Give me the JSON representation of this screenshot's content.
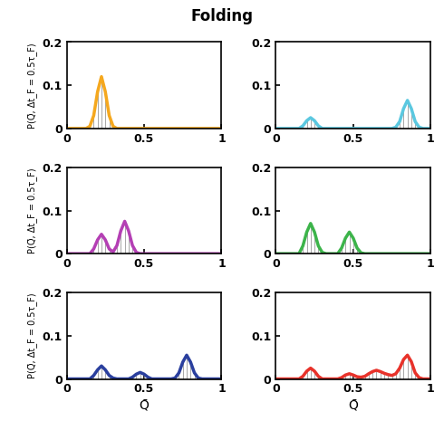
{
  "title": "Folding",
  "chart_data": [
    {
      "type": "line",
      "x": [
        0,
        0.025,
        0.05,
        0.075,
        0.1,
        0.125,
        0.15,
        0.175,
        0.2,
        0.225,
        0.25,
        0.275,
        0.3,
        0.325,
        0.35,
        0.375,
        0.4,
        0.425,
        0.45,
        0.475,
        0.5,
        0.525,
        0.55,
        0.575,
        0.6,
        0.625,
        0.65,
        0.675,
        0.7,
        0.725,
        0.75,
        0.775,
        0.8,
        0.825,
        0.85,
        0.875,
        0.9,
        0.925,
        0.95,
        0.975,
        1
      ],
      "series": [
        {
          "color": "#f5a81e",
          "values": [
            0,
            0,
            0,
            0,
            0,
            0,
            0.005,
            0.03,
            0.085,
            0.12,
            0.085,
            0.03,
            0.005,
            0,
            0,
            0,
            0,
            0,
            0,
            0,
            0,
            0,
            0,
            0,
            0,
            0,
            0,
            0,
            0,
            0,
            0,
            0,
            0,
            0,
            0,
            0,
            0,
            0,
            0,
            0,
            0
          ]
        }
      ],
      "xlim": [
        0,
        1
      ],
      "ylim": [
        0,
        0.2
      ],
      "xticks": [
        0,
        0.5,
        1
      ],
      "yticks": [
        0,
        0.1,
        0.2
      ],
      "ylabel": "P(Q̄, Δt_F = 0.5τ_F)"
    },
    {
      "type": "line",
      "x": [
        0,
        0.025,
        0.05,
        0.075,
        0.1,
        0.125,
        0.15,
        0.175,
        0.2,
        0.225,
        0.25,
        0.275,
        0.3,
        0.325,
        0.35,
        0.375,
        0.4,
        0.425,
        0.45,
        0.475,
        0.5,
        0.525,
        0.55,
        0.575,
        0.6,
        0.625,
        0.65,
        0.675,
        0.7,
        0.725,
        0.75,
        0.775,
        0.8,
        0.825,
        0.85,
        0.875,
        0.9,
        0.925,
        0.95,
        0.975,
        1
      ],
      "series": [
        {
          "color": "#5bc8e0",
          "values": [
            0,
            0,
            0,
            0,
            0,
            0,
            0,
            0.006,
            0.018,
            0.025,
            0.018,
            0.006,
            0,
            0,
            0,
            0,
            0,
            0,
            0,
            0,
            0,
            0,
            0,
            0,
            0,
            0,
            0,
            0,
            0,
            0,
            0,
            0.003,
            0.016,
            0.046,
            0.065,
            0.046,
            0.016,
            0.003,
            0,
            0,
            0
          ]
        }
      ],
      "xlim": [
        0,
        1
      ],
      "ylim": [
        0,
        0.2
      ],
      "xticks": [
        0,
        0.5,
        1
      ],
      "yticks": [
        0,
        0.1,
        0.2
      ]
    },
    {
      "type": "line",
      "x": [
        0,
        0.025,
        0.05,
        0.075,
        0.1,
        0.125,
        0.15,
        0.175,
        0.2,
        0.225,
        0.25,
        0.275,
        0.3,
        0.325,
        0.35,
        0.375,
        0.4,
        0.425,
        0.45,
        0.475,
        0.5,
        0.525,
        0.55,
        0.575,
        0.6,
        0.625,
        0.65,
        0.675,
        0.7,
        0.725,
        0.75,
        0.775,
        0.8,
        0.825,
        0.85,
        0.875,
        0.9,
        0.925,
        0.95,
        0.975,
        1
      ],
      "series": [
        {
          "color": "#b43fb4",
          "values": [
            0,
            0,
            0,
            0,
            0,
            0,
            0,
            0.011,
            0.032,
            0.045,
            0.032,
            0.011,
            0.004,
            0.019,
            0.053,
            0.075,
            0.053,
            0.019,
            0.003,
            0,
            0,
            0,
            0,
            0,
            0,
            0,
            0,
            0,
            0,
            0,
            0,
            0,
            0,
            0,
            0,
            0,
            0,
            0,
            0,
            0,
            0
          ]
        }
      ],
      "xlim": [
        0,
        1
      ],
      "ylim": [
        0,
        0.2
      ],
      "xticks": [
        0,
        0.5,
        1
      ],
      "yticks": [
        0,
        0.1,
        0.2
      ],
      "ylabel": "P(Q̄, Δt_F = 0.5τ_F)"
    },
    {
      "type": "line",
      "x": [
        0,
        0.025,
        0.05,
        0.075,
        0.1,
        0.125,
        0.15,
        0.175,
        0.2,
        0.225,
        0.25,
        0.275,
        0.3,
        0.325,
        0.35,
        0.375,
        0.4,
        0.425,
        0.45,
        0.475,
        0.5,
        0.525,
        0.55,
        0.575,
        0.6,
        0.625,
        0.65,
        0.675,
        0.7,
        0.725,
        0.75,
        0.775,
        0.8,
        0.825,
        0.85,
        0.875,
        0.9,
        0.925,
        0.95,
        0.975,
        1
      ],
      "series": [
        {
          "color": "#3cb44a",
          "values": [
            0,
            0,
            0,
            0,
            0,
            0,
            0,
            0.018,
            0.05,
            0.07,
            0.05,
            0.018,
            0.003,
            0,
            0,
            0,
            0,
            0.013,
            0.036,
            0.05,
            0.036,
            0.013,
            0.002,
            0,
            0,
            0,
            0,
            0,
            0,
            0,
            0,
            0,
            0,
            0,
            0,
            0,
            0,
            0,
            0,
            0,
            0
          ]
        }
      ],
      "xlim": [
        0,
        1
      ],
      "ylim": [
        0,
        0.2
      ],
      "xticks": [
        0,
        0.5,
        1
      ],
      "yticks": [
        0,
        0.1,
        0.2
      ]
    },
    {
      "type": "line",
      "x": [
        0,
        0.025,
        0.05,
        0.075,
        0.1,
        0.125,
        0.15,
        0.175,
        0.2,
        0.225,
        0.25,
        0.275,
        0.3,
        0.325,
        0.35,
        0.375,
        0.4,
        0.425,
        0.45,
        0.475,
        0.5,
        0.525,
        0.55,
        0.575,
        0.6,
        0.625,
        0.65,
        0.675,
        0.7,
        0.725,
        0.75,
        0.775,
        0.8,
        0.825,
        0.85,
        0.875,
        0.9,
        0.925,
        0.95,
        0.975,
        1
      ],
      "series": [
        {
          "color": "#2a3f9e",
          "values": [
            0,
            0,
            0,
            0,
            0,
            0,
            0,
            0.008,
            0.021,
            0.03,
            0.021,
            0.008,
            0.002,
            0,
            0,
            0,
            0,
            0.004,
            0.011,
            0.015,
            0.011,
            0.004,
            0,
            0,
            0,
            0,
            0,
            0,
            0.002,
            0.014,
            0.039,
            0.055,
            0.039,
            0.014,
            0.002,
            0,
            0,
            0,
            0,
            0,
            0
          ]
        }
      ],
      "xlim": [
        0,
        1
      ],
      "ylim": [
        0,
        0.2
      ],
      "xticks": [
        0,
        0.5,
        1
      ],
      "yticks": [
        0,
        0.1,
        0.2
      ],
      "ylabel": "P(Q̄, Δt_F = 0.5τ_F)",
      "xlabel": "Q̄"
    },
    {
      "type": "line",
      "x": [
        0,
        0.025,
        0.05,
        0.075,
        0.1,
        0.125,
        0.15,
        0.175,
        0.2,
        0.225,
        0.25,
        0.275,
        0.3,
        0.325,
        0.35,
        0.375,
        0.4,
        0.425,
        0.45,
        0.475,
        0.5,
        0.525,
        0.55,
        0.575,
        0.6,
        0.625,
        0.65,
        0.675,
        0.7,
        0.725,
        0.75,
        0.775,
        0.8,
        0.825,
        0.85,
        0.875,
        0.9,
        0.925,
        0.95,
        0.975,
        1
      ],
      "series": [
        {
          "color": "#e8322a",
          "values": [
            0,
            0,
            0,
            0,
            0,
            0,
            0,
            0.006,
            0.018,
            0.025,
            0.018,
            0.006,
            0,
            0,
            0,
            0,
            0,
            0.003,
            0.009,
            0.012,
            0.009,
            0.005,
            0.004,
            0.006,
            0.012,
            0.017,
            0.02,
            0.017,
            0.013,
            0.01,
            0.008,
            0.012,
            0.025,
            0.045,
            0.055,
            0.04,
            0.014,
            0.003,
            0,
            0,
            0
          ]
        }
      ],
      "xlim": [
        0,
        1
      ],
      "ylim": [
        0,
        0.2
      ],
      "xticks": [
        0,
        0.5,
        1
      ],
      "yticks": [
        0,
        0.1,
        0.2
      ],
      "xlabel": "Q̄"
    }
  ]
}
